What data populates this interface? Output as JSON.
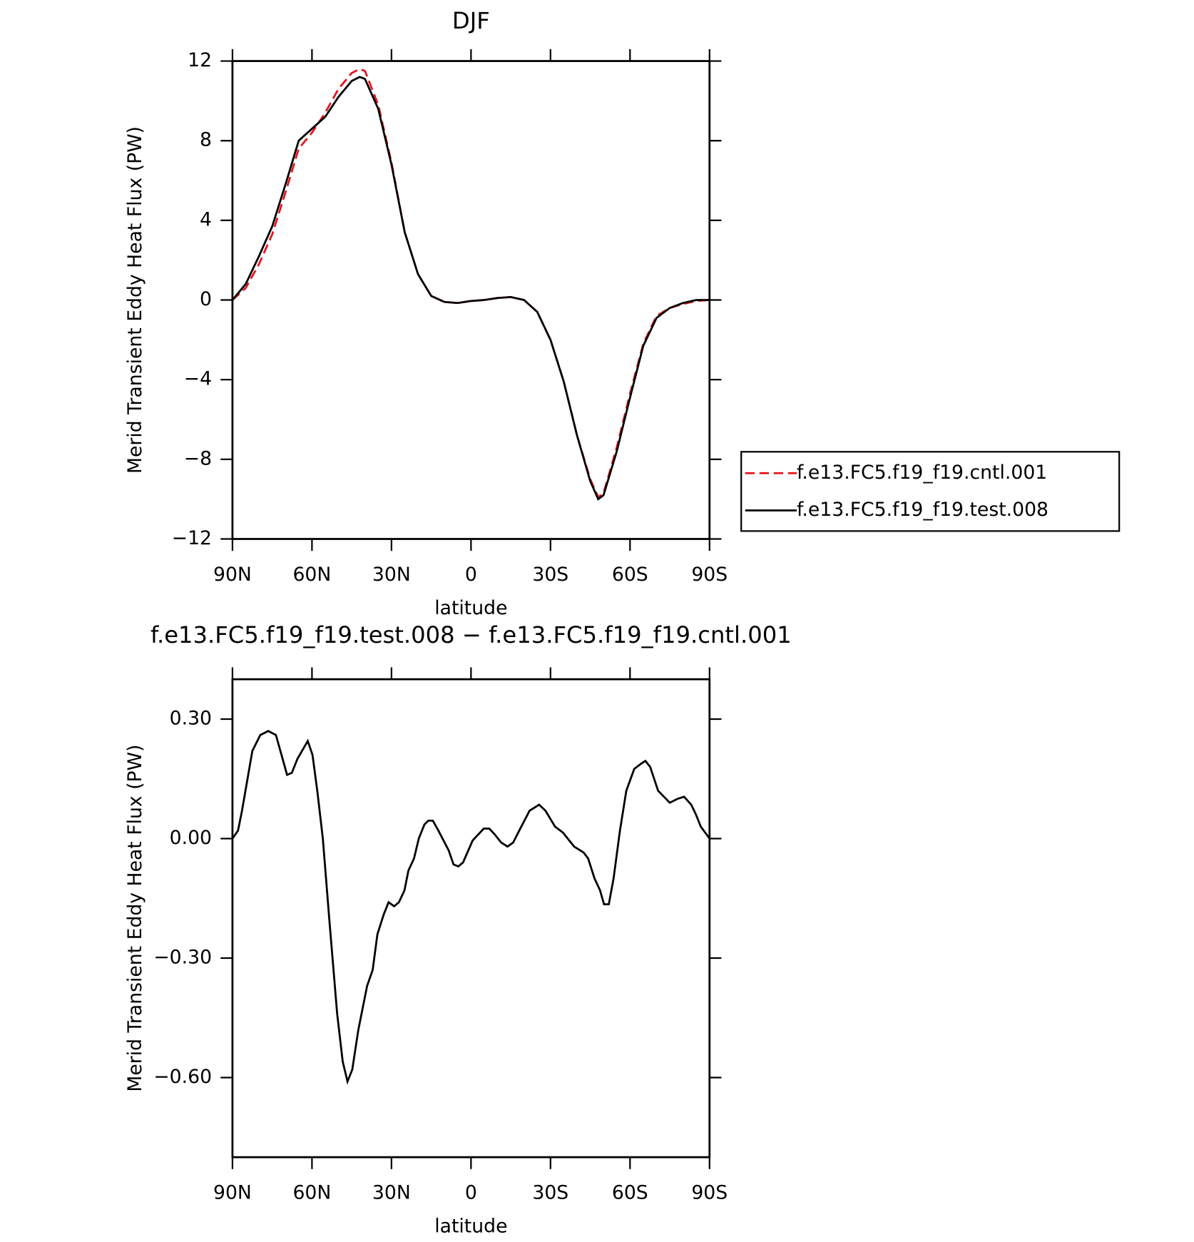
{
  "chart_data": [
    {
      "type": "line",
      "title": "DJF",
      "xlabel": "latitude",
      "ylabel": "Merid Transient Eddy Heat Flux (PW)",
      "xlim": [
        90,
        -90
      ],
      "ylim": [
        -12,
        12
      ],
      "xticks": [
        {
          "value": 90,
          "label": "90N"
        },
        {
          "value": 60,
          "label": "60N"
        },
        {
          "value": 30,
          "label": "30N"
        },
        0,
        {
          "value": -30,
          "label": "30S"
        },
        {
          "value": -60,
          "label": "60S"
        },
        {
          "value": -90,
          "label": "90S"
        }
      ],
      "yticks": [
        {
          "value": -12,
          "label": "−12"
        },
        {
          "value": -8,
          "label": "−8"
        },
        {
          "value": -4,
          "label": "−4"
        },
        0,
        4,
        8,
        12
      ],
      "legend": "right",
      "x": [
        90,
        85,
        80,
        75,
        70,
        65,
        60,
        55,
        50,
        45,
        42,
        40,
        35,
        30,
        25,
        20,
        15,
        10,
        5,
        0,
        -5,
        -10,
        -15,
        -20,
        -25,
        -30,
        -35,
        -40,
        -45,
        -48,
        -50,
        -55,
        -60,
        -65,
        -70,
        -75,
        -80,
        -85,
        -90
      ],
      "series": [
        {
          "name": "f.e13.FC5.f19_f19.cntl.001",
          "color": "#e8141c",
          "dash": true,
          "values": [
            0,
            0.6,
            1.8,
            3.3,
            5.4,
            7.6,
            8.4,
            9.4,
            10.6,
            11.4,
            11.6,
            11.5,
            9.8,
            6.9,
            3.4,
            1.3,
            0.2,
            -0.1,
            -0.15,
            -0.05,
            0,
            0.1,
            0.15,
            0,
            -0.6,
            -2.0,
            -4.1,
            -6.8,
            -9.0,
            -9.9,
            -9.7,
            -7.4,
            -4.7,
            -2.2,
            -0.8,
            -0.4,
            -0.2,
            -0.05,
            0
          ]
        },
        {
          "name": "f.e13.FC5.f19_f19.test.008",
          "color": "#000000",
          "dash": false,
          "values": [
            0,
            0.8,
            2.2,
            3.7,
            5.8,
            8.0,
            8.6,
            9.2,
            10.2,
            11.0,
            11.2,
            11.1,
            9.6,
            6.8,
            3.4,
            1.3,
            0.2,
            -0.1,
            -0.15,
            -0.05,
            0,
            0.1,
            0.15,
            0,
            -0.6,
            -2.0,
            -4.1,
            -6.8,
            -9.1,
            -10.0,
            -9.8,
            -7.6,
            -4.9,
            -2.3,
            -0.9,
            -0.4,
            -0.15,
            0,
            0
          ]
        }
      ]
    },
    {
      "type": "line",
      "title": "f.e13.FC5.f19_f19.test.008 − f.e13.FC5.f19_f19.cntl.001",
      "xlabel": "latitude",
      "ylabel": "Merid Transient Eddy Heat Flux (PW)",
      "xlim": [
        90,
        -90
      ],
      "ylim": [
        -0.8,
        0.4
      ],
      "xticks": [
        {
          "value": 90,
          "label": "90N"
        },
        {
          "value": 60,
          "label": "60N"
        },
        {
          "value": 30,
          "label": "30N"
        },
        0,
        {
          "value": -30,
          "label": "30S"
        },
        {
          "value": -60,
          "label": "60S"
        },
        {
          "value": -90,
          "label": "90S"
        }
      ],
      "yticks": [
        {
          "value": -0.6,
          "label": "−0.60"
        },
        {
          "value": -0.3,
          "label": "−0.30"
        },
        {
          "value": 0,
          "label": "0.00"
        },
        {
          "value": 0.3,
          "label": "0.30"
        }
      ],
      "x": [
        90,
        87.9,
        86.4,
        82.5,
        79.5,
        76.5,
        73.6,
        69.4,
        67.6,
        65.5,
        61.6,
        59.8,
        58.0,
        55.9,
        53.5,
        50.5,
        48.4,
        46.6,
        44.8,
        42.5,
        39.2,
        37.1,
        35.3,
        32.9,
        31.1,
        29.0,
        27.2,
        25.1,
        23.6,
        21.5,
        19.7,
        17.6,
        16.1,
        14.4,
        12.3,
        8.4,
        6.6,
        4.8,
        3.0,
        -0.6,
        -2.7,
        -4.8,
        -6.9,
        -9.0,
        -11.4,
        -13.8,
        -15.9,
        -18.2,
        -22.1,
        -25.7,
        -28.1,
        -31.7,
        -34.7,
        -38.9,
        -42.5,
        -44.2,
        -46.6,
        -48.7,
        -50.2,
        -52.0,
        -53.8,
        -56.2,
        -58.6,
        -61.6,
        -64.6,
        -65.8,
        -67.6,
        -70.6,
        -75.0,
        -78.0,
        -80.4,
        -83.1,
        -84.9,
        -86.7,
        -90
      ],
      "series": [
        {
          "color": "#000000",
          "dash": false,
          "values": [
            0,
            0.02,
            0.07,
            0.22,
            0.26,
            0.27,
            0.26,
            0.16,
            0.165,
            0.2,
            0.245,
            0.21,
            0.12,
            0.0,
            -0.2,
            -0.44,
            -0.56,
            -0.61,
            -0.58,
            -0.48,
            -0.37,
            -0.33,
            -0.24,
            -0.19,
            -0.16,
            -0.17,
            -0.16,
            -0.13,
            -0.08,
            -0.05,
            0.0,
            0.035,
            0.045,
            0.045,
            0.02,
            -0.03,
            -0.065,
            -0.07,
            -0.06,
            -0.005,
            0.01,
            0.025,
            0.025,
            0.01,
            -0.01,
            -0.02,
            -0.01,
            0.02,
            0.07,
            0.085,
            0.07,
            0.03,
            0.015,
            -0.02,
            -0.035,
            -0.05,
            -0.1,
            -0.13,
            -0.165,
            -0.165,
            -0.1,
            0.02,
            0.12,
            0.175,
            0.19,
            0.195,
            0.18,
            0.12,
            0.09,
            0.1,
            0.105,
            0.085,
            0.06,
            0.03,
            0.0
          ]
        }
      ]
    }
  ]
}
